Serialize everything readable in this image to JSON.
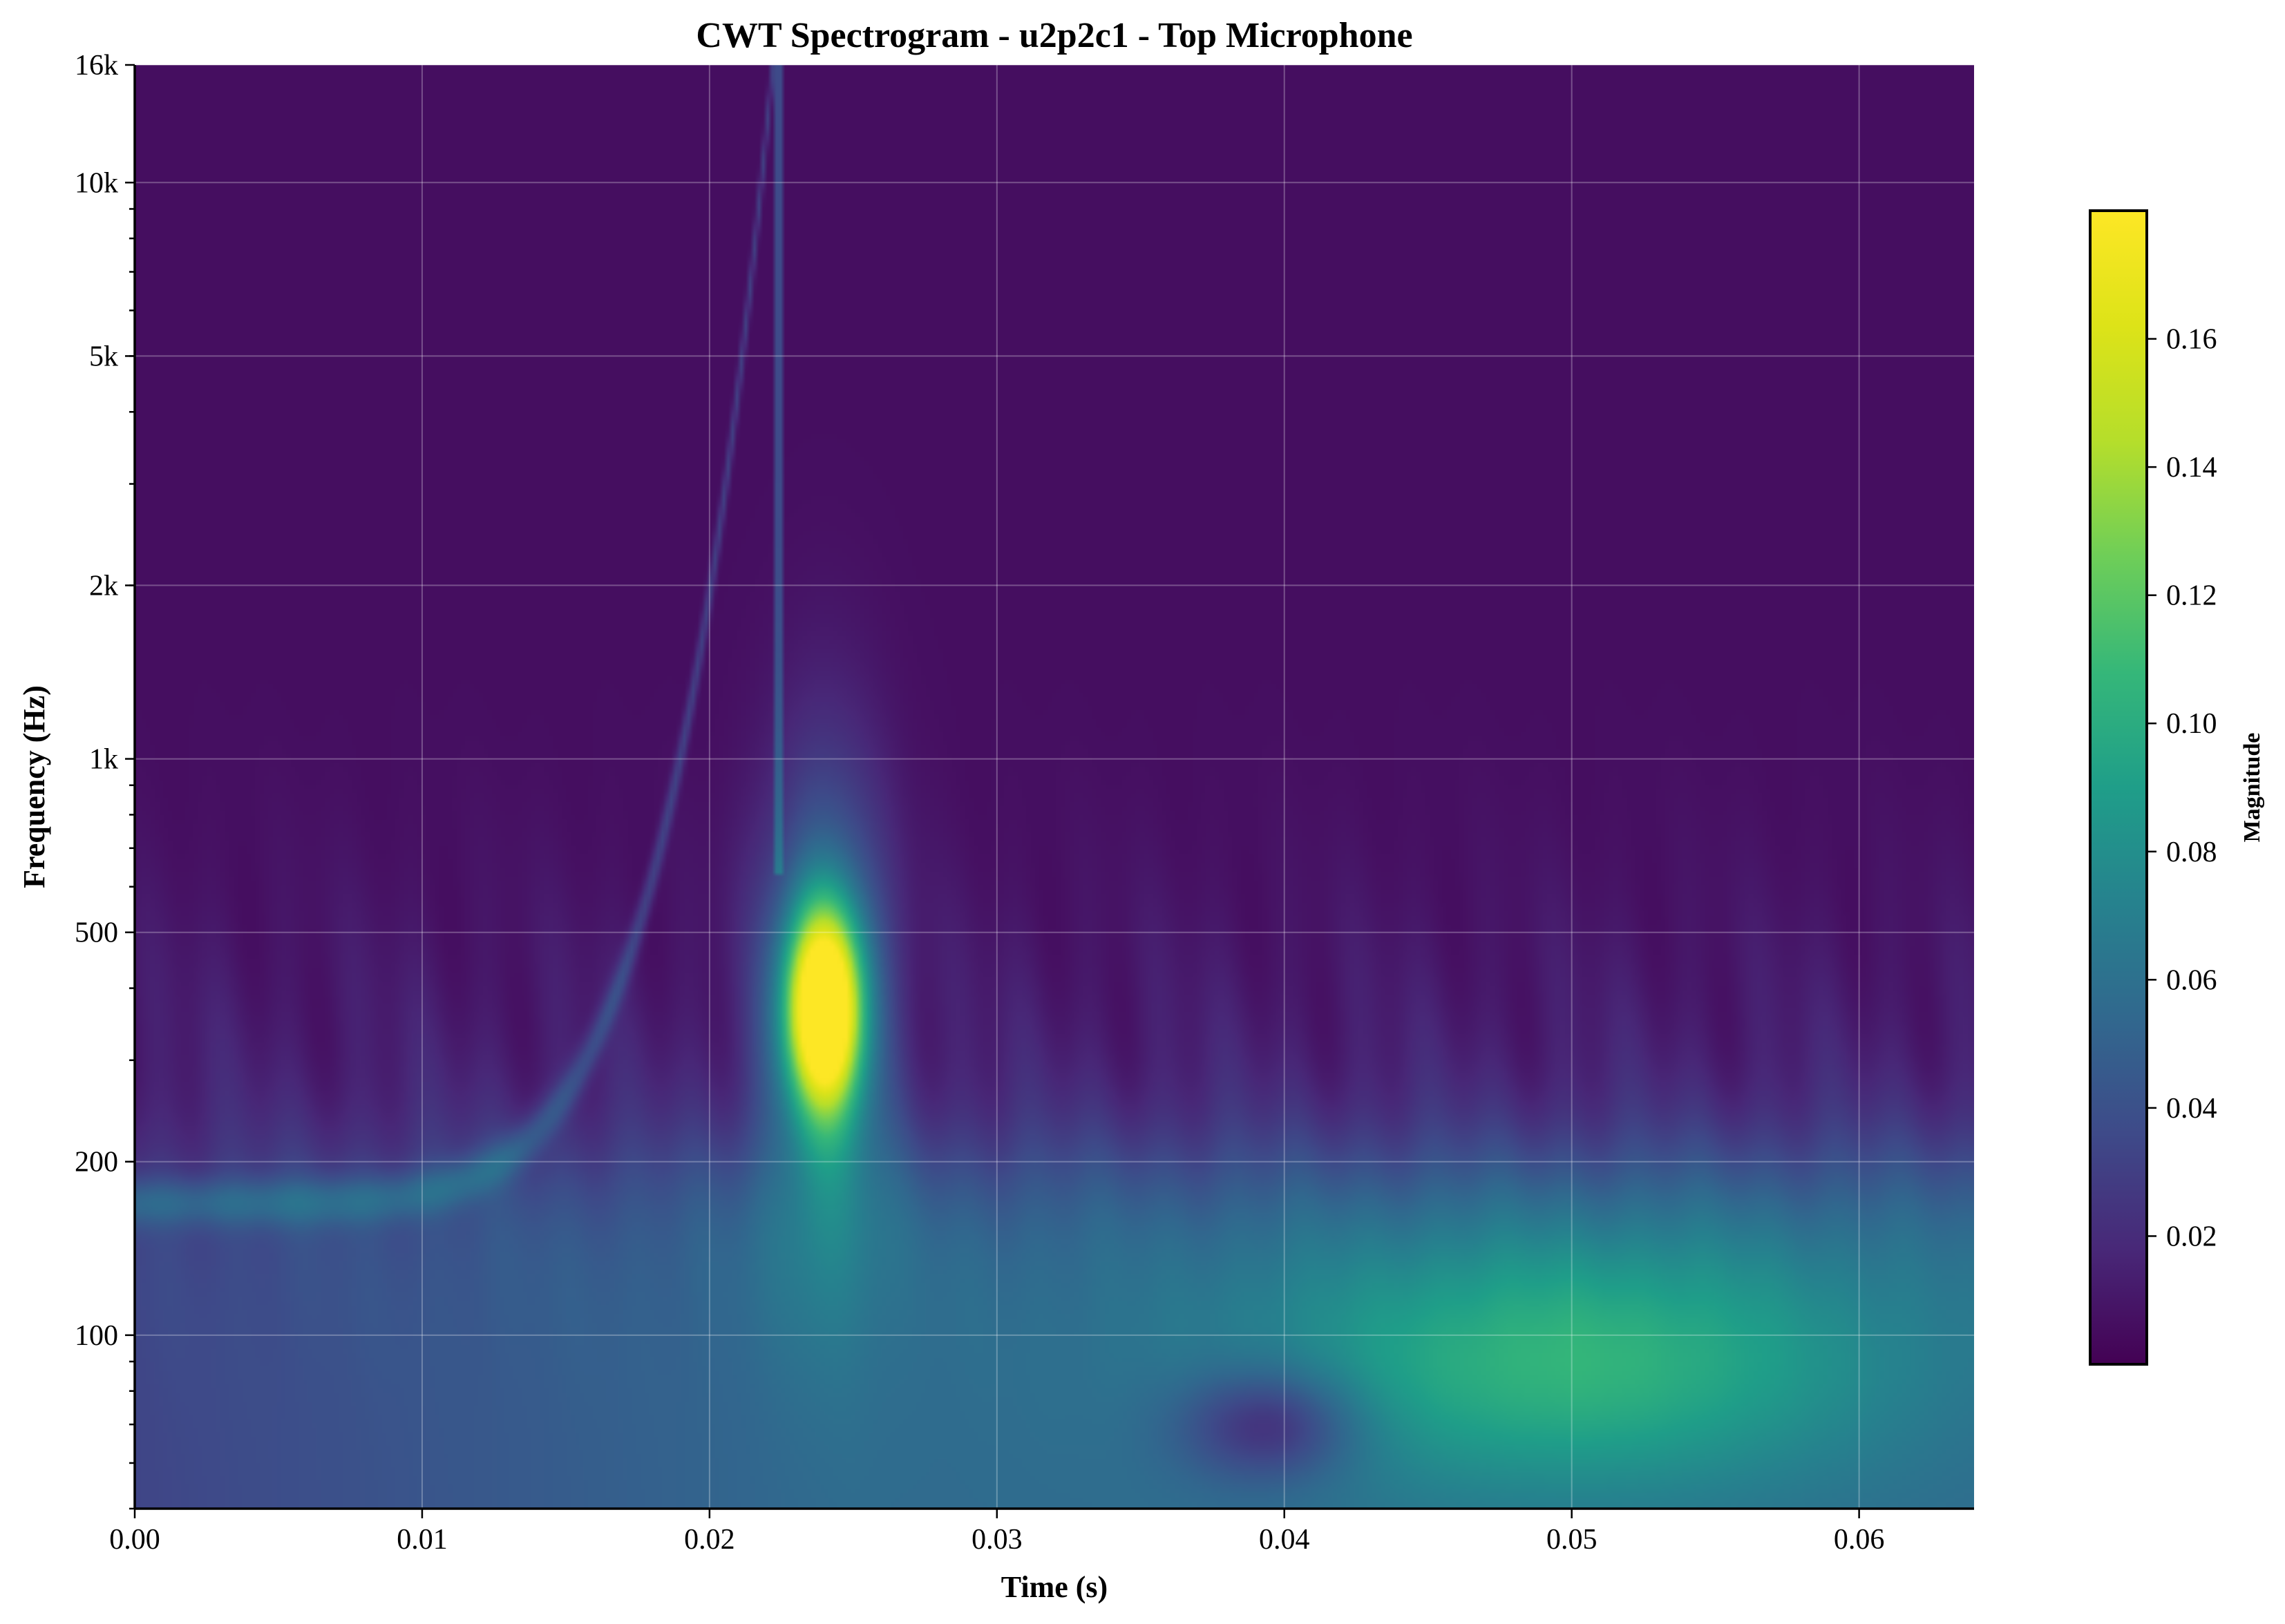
{
  "chart_data": {
    "type": "heatmap",
    "title": "CWT Spectrogram - u2p2c1 - Top Microphone",
    "xlabel": "Time (s)",
    "ylabel": "Frequency (Hz)",
    "xlim": [
      0.0,
      0.064
    ],
    "ylim": [
      50,
      16000
    ],
    "yscale": "log",
    "grid": true,
    "colormap": "viridis",
    "x_ticks": [
      {
        "value": 0.0,
        "label": "0.00"
      },
      {
        "value": 0.01,
        "label": "0.01"
      },
      {
        "value": 0.02,
        "label": "0.02"
      },
      {
        "value": 0.03,
        "label": "0.03"
      },
      {
        "value": 0.04,
        "label": "0.04"
      },
      {
        "value": 0.05,
        "label": "0.05"
      },
      {
        "value": 0.06,
        "label": "0.06"
      }
    ],
    "y_ticks": [
      {
        "value": 100,
        "label": "100"
      },
      {
        "value": 200,
        "label": "200"
      },
      {
        "value": 500,
        "label": "500"
      },
      {
        "value": 1000,
        "label": "1k"
      },
      {
        "value": 2000,
        "label": "2k"
      },
      {
        "value": 5000,
        "label": "5k"
      },
      {
        "value": 10000,
        "label": "10k"
      },
      {
        "value": 16000,
        "label": "16k"
      }
    ],
    "colorbar": {
      "label": "Magnitude",
      "vmin": 0.0,
      "vmax": 0.18,
      "ticks": [
        {
          "value": 0.02,
          "label": "0.02"
        },
        {
          "value": 0.04,
          "label": "0.04"
        },
        {
          "value": 0.06,
          "label": "0.06"
        },
        {
          "value": 0.08,
          "label": "0.08"
        },
        {
          "value": 0.1,
          "label": "0.10"
        },
        {
          "value": 0.12,
          "label": "0.12"
        },
        {
          "value": 0.14,
          "label": "0.14"
        },
        {
          "value": 0.16,
          "label": "0.16"
        }
      ]
    },
    "features": [
      {
        "kind": "peak",
        "t": 0.024,
        "f": 370,
        "magnitude": 0.18
      },
      {
        "kind": "blob",
        "t": 0.05,
        "f": 90,
        "magnitude": 0.09
      },
      {
        "kind": "dip",
        "t": 0.0395,
        "f": 70,
        "magnitude": 0.005
      },
      {
        "kind": "chirp",
        "t_start": 0.0,
        "f_start": 170,
        "t_end": 0.0222,
        "f_end": 16000,
        "magnitude": 0.05
      },
      {
        "kind": "low-band",
        "f_low": 50,
        "f_high": 200,
        "magnitude": 0.05
      }
    ]
  }
}
